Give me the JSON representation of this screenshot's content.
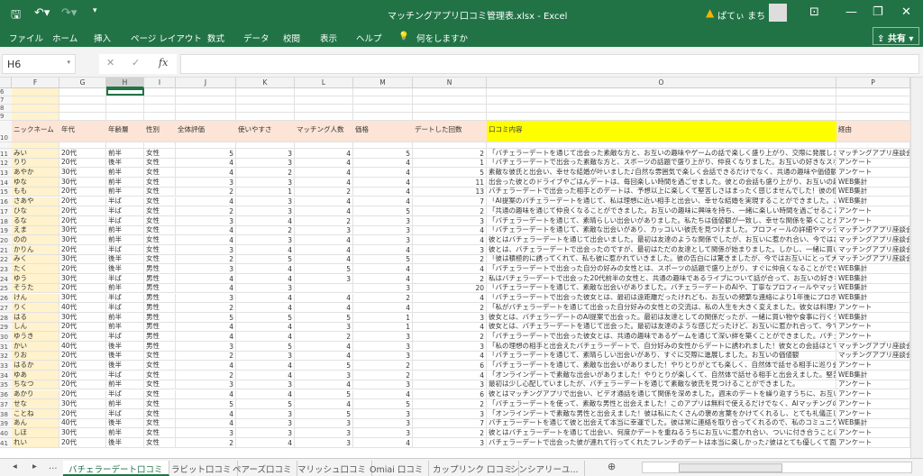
{
  "app": {
    "title": "マッチングアプリ口コミ管理表.xlsx  -  Excel",
    "user": "ぱてぃ まち",
    "share": "共有"
  },
  "ribbon": {
    "tabs": [
      "ファイル",
      "ホーム",
      "挿入",
      "ページ レイアウト",
      "数式",
      "データ",
      "校閲",
      "表示",
      "ヘルプ"
    ],
    "tell_me": "何をしますか"
  },
  "formula": {
    "name_box": "H6",
    "value": ""
  },
  "columns": [
    "F",
    "G",
    "H",
    "I",
    "J",
    "K",
    "L",
    "M",
    "N",
    "O",
    "P"
  ],
  "selected_cell": "H6",
  "header_row": {
    "num": "10",
    "labels": [
      "ニックネーム",
      "年代",
      "年齢層",
      "性別",
      "全体評価",
      "使いやすさ",
      "マッチング人数",
      "価格",
      "デートした回数",
      "口コミ内容",
      "経由"
    ]
  },
  "empty_rows": [
    "6",
    "7",
    "8",
    "9"
  ],
  "rows": [
    [
      "11",
      "みい",
      "20代",
      "前半",
      "女性",
      "5",
      "3",
      "4",
      "5",
      "2",
      "「バチェラーデートを通じて出会った素敵な方と、お互いの趣味やゲームの話で楽しく盛り上がり、交際に発展しました。マッチ",
      "マッチングアプリ座談会"
    ],
    [
      "12",
      "りり",
      "20代",
      "後半",
      "女性",
      "4",
      "3",
      "4",
      "4",
      "1",
      "「バチェラーデートで出会った素敵な方と、スポーツの話題で盛り上がり、仲良くなりました。お互いの好きなスポーツを通じて、",
      "アンケート"
    ],
    [
      "13",
      "あやか",
      "30代",
      "前半",
      "女性",
      "4",
      "2",
      "4",
      "4",
      "5",
      "素敵な彼氏と出会い、幸せな結婚が叶いました♪自然な雰囲気で楽しく会話できるだけでなく、共通の趣味や価値観にも感",
      "アンケート"
    ],
    [
      "14",
      "ゆな",
      "30代",
      "前半",
      "女性",
      "3",
      "3",
      "4",
      "4",
      "11",
      "出会った彼とのドライブやごはんデートは、毎回楽しい時間を過ごせました。彼との会話も盛り上がり、お互いの趣味や好みも",
      "WEB集計"
    ],
    [
      "15",
      "もも",
      "20代",
      "前半",
      "女性",
      "2",
      "1",
      "2",
      "4",
      "13",
      "バチェラーデートで出会った相手とのデートは、予想以上に楽しくて堅苦しさはまったく感じませんでした！彼の個性や趣味に",
      "WEB集計"
    ],
    [
      "16",
      "さあや",
      "20代",
      "半ば",
      "女性",
      "4",
      "3",
      "4",
      "4",
      "7",
      "「AI提案のバチェラーデートを通じて、私は理想に近い相手と出会い、幸せな結婚を実現することができました。このアプリの",
      "WEB集計"
    ],
    [
      "17",
      "ひな",
      "20代",
      "半ば",
      "女性",
      "2",
      "3",
      "4",
      "5",
      "2",
      "「共通の趣味を通じて仲良くなることができました。お互いの趣味に興味を持ち、一緒に楽しい時間を過ごせることができてと",
      "アンケート"
    ],
    [
      "18",
      "るな",
      "20代",
      "半ば",
      "女性",
      "3",
      "4",
      "2",
      "3",
      "3",
      "「バチェラーデートを通じて、素晴らしい出会いがありました。私たちは価値観が一致し、幸せな関係を築くことができました。",
      "アンケート"
    ],
    [
      "19",
      "えま",
      "30代",
      "前半",
      "女性",
      "4",
      "2",
      "3",
      "3",
      "4",
      "「バチェラーデートを通じて、素敵な出会いがあり、カッコいい彼氏を見つけました。プロフィールの詳細やマッチングアルゴリズ",
      "マッチングアプリ座談会"
    ],
    [
      "20",
      "のの",
      "30代",
      "前半",
      "女性",
      "4",
      "3",
      "4",
      "3",
      "4",
      "彼とはバチェラーデートを通じて出会いました。最初は友達のような関係でしたが、お互いに惹かれ合い、今ではお互いを尊",
      "マッチングアプリ座談会"
    ],
    [
      "21",
      "かりん",
      "20代",
      "半ば",
      "女性",
      "3",
      "4",
      "4",
      "4",
      "3",
      "彼とは、バチェラーデートで出会ったのですが、最初はただの友達として関係が始まりました。しかし、一緒に買い物や食事に",
      "マッチングアプリ座談会"
    ],
    [
      "22",
      "みく",
      "30代",
      "後半",
      "女性",
      "2",
      "5",
      "4",
      "5",
      "2",
      "「彼は積極的に誘ってくれて、私も彼に惹かれていきました。彼の告白には驚きましたが、今ではお互いにとって大切な存在で",
      "マッチングアプリ座談会"
    ],
    [
      "23",
      "たく",
      "20代",
      "後半",
      "男性",
      "3",
      "4",
      "5",
      "4",
      "4",
      "「バチェラーデートで出会った自分の好みの女性とは、スポーツの話題で盛り上がり、すぐに仲良くなることができました。お互",
      "WEB集計"
    ],
    [
      "24",
      "ゆう",
      "30代",
      "半ば",
      "男性",
      "4",
      "4",
      "3",
      "4",
      "2",
      "私はバチェラーデートで出会った20代前半の女性と、共通の趣味であるライブについて話が合って、お互いの好きなアーティ",
      "WEB集計"
    ],
    [
      "25",
      "そうた",
      "20代",
      "前半",
      "男性",
      "4",
      "3",
      "",
      "3",
      "20",
      "「バチェラーデートを通じて、素敵な出会いがありました。バチェラーデートのAIや、丁寧なプロフィールやマッチングアルゴリズ",
      "WEB集計"
    ],
    [
      "26",
      "けん",
      "30代",
      "半ば",
      "男性",
      "3",
      "4",
      "4",
      "2",
      "4",
      "「バチェラーデートで出会った彼女とは、最初は遠距離だったけれども、お互いの頻繁な連絡により1年後にプロポーズし、結婚する",
      "WEB集計"
    ],
    [
      "27",
      "りく",
      "40代",
      "半ば",
      "男性",
      "2",
      "4",
      "4",
      "4",
      "2",
      "「私がバチェラーデートを通じて出会った自分好みの女性との交流は、私の人生を大きく変えました。彼女は料理が得意で、",
      "アンケート"
    ],
    [
      "28",
      "はる",
      "30代",
      "前半",
      "男性",
      "5",
      "5",
      "5",
      "1",
      "3",
      "彼女とは、バチェラーデートのAI提案で出会った。最初は友達としての関係だったが、一緒に買い物や食事に行くうちに、お互",
      "WEB集計"
    ],
    [
      "29",
      "しん",
      "20代",
      "前半",
      "男性",
      "4",
      "4",
      "3",
      "1",
      "4",
      "彼女とは、バチェラーデートを通じて出会った。最初は友達のような感じだったけど、お互いに惹かれ合って、今ではお互いを",
      "アンケート"
    ],
    [
      "30",
      "ゆうき",
      "20代",
      "半ば",
      "男性",
      "4",
      "4",
      "2",
      "3",
      "2",
      "「バチェラーデートで出会った彼女とは、共通の趣味であるゲームを通じて深い絆を築くことができました。バチェラーデートの",
      "アンケート"
    ],
    [
      "31",
      "かい",
      "40代",
      "後半",
      "男性",
      "3",
      "5",
      "4",
      "3",
      "3",
      "「私の理想の相手と出会えたバチェラーデートで、自分好みの女性からデートに誘われました！彼女との会話はとても楽しく、",
      "マッチングアプリ座談会"
    ],
    [
      "32",
      "りお",
      "20代",
      "後半",
      "女性",
      "2",
      "3",
      "4",
      "3",
      "4",
      "「バチェラーデートを通じて、素晴らしい出会いがあり、すぐに交際に進展しました。お互いの価値観",
      "マッチングアプリ座談会"
    ],
    [
      "33",
      "はるか",
      "20代",
      "後半",
      "女性",
      "4",
      "4",
      "5",
      "2",
      "6",
      "「バチェラーデートを通じて、素敵な出会いがありました！やりとりがとても楽しく、自然体で話せる相手に巡り会えました。堅苦",
      "アンケート"
    ],
    [
      "34",
      "ゆあ",
      "20代",
      "半ば",
      "女性",
      "2",
      "4",
      "3",
      "2",
      "4",
      "「オンラインデートで素敵な出会いがありました！やりとりが楽しくて、自然体で話せる相手と出会えました。堅苦しくなく、笑",
      "WEB集計"
    ],
    [
      "35",
      "ちなつ",
      "20代",
      "前半",
      "女性",
      "3",
      "3",
      "4",
      "3",
      "3",
      "最初は少し心配していましたが、バチェラーデートを通じて素敵な彼氏を見つけることができました。",
      "アンケート"
    ],
    [
      "36",
      "あかり",
      "20代",
      "半ば",
      "女性",
      "4",
      "4",
      "5",
      "4",
      "6",
      "彼とはマッチングアプリで出会い、ビデオ通話を通じて関係を深めました。週末のデートを繰り返すうちに、お互いの魅力を知",
      "アンケート"
    ],
    [
      "37",
      "せな",
      "30代",
      "前半",
      "女性",
      "5",
      "5",
      "4",
      "5",
      "2",
      "「バチェラーデートを使って、素敵な男性と出会えました！このアプリは無料で使えるだけでなく、AIマッチングの質も非常に高",
      "アンケート"
    ],
    [
      "38",
      "ことね",
      "20代",
      "半ば",
      "女性",
      "4",
      "3",
      "5",
      "3",
      "3",
      "「オンラインデートで素敵な男性と出会えました！彼は私にたくさんの褒め言葉をかけてくれるし、とても礼儀正しい態度に感",
      "アンケート"
    ],
    [
      "39",
      "あん",
      "40代",
      "後半",
      "女性",
      "4",
      "3",
      "3",
      "3",
      "7",
      "バチェラーデートを通じて彼と出会えて本当に幸運でした。彼は常に連絡を取り合ってくれるので、私のコミュニケーションの",
      "WEB集計"
    ],
    [
      "40",
      "しほ",
      "30代",
      "前半",
      "女性",
      "3",
      "3",
      "3",
      "3",
      "2",
      "彼とはバチェラーデートを通じて出会い、何度かデートを重ねるうちにお互いに惹かれ合い、ついに付き合うことになりました。",
      "アンケート"
    ],
    [
      "41",
      "れい",
      "20代",
      "後半",
      "女性",
      "2",
      "4",
      "3",
      "4",
      "3",
      "バチェラーデートで出会った彼が連れて行ってくれたフレンチのデートは本当に楽しかった♪彼はとても優しくて面白く、美味し",
      "アンケート"
    ]
  ],
  "sheet_tabs": [
    "バチェラーデート口コミ",
    "ラビット口コミ",
    "ペアーズ口コミ",
    "マリッシュ口コミ",
    "Omiai 口コミ",
    "カップリンク 口コミ",
    "シンシアリーユ..."
  ],
  "active_sheet": 0,
  "colors": {
    "excel_green": "#217346",
    "header_fill": "#fce4d6",
    "review_header_fill": "#ffff00",
    "nickname_fill": "#fff2cc"
  }
}
